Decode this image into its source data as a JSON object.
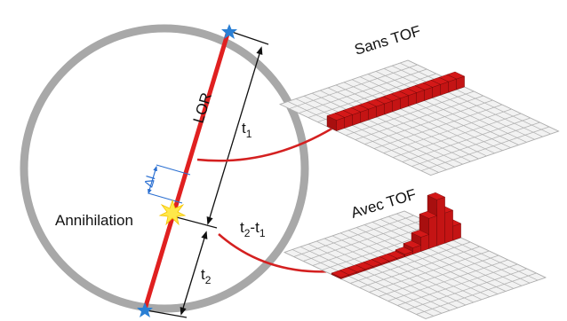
{
  "labels": {
    "lor": "LOR",
    "t1": "t",
    "t1_sub": "1",
    "t2": "t",
    "t2_sub": "2",
    "t2_minus_t1_a": "t",
    "t2_minus_t1_a_sub": "2",
    "t2_minus_t1_dash": "-t",
    "t2_minus_t1_b_sub": "1",
    "delta_l": "Δl",
    "annihilation": "Annihilation",
    "sans_tof": "Sans TOF",
    "avec_tof": "Avec TOF"
  },
  "colors": {
    "ring": "#a8a8a8",
    "lor": "#e02020",
    "arrow": "#d42020",
    "detector": "#2a7fd4",
    "delta": "#2a6fd1",
    "burst": "#ffe84a",
    "grid": "#b0b0b0",
    "bar": "#d41818"
  },
  "icons": {
    "detector_top": "star-burst-icon",
    "detector_bottom": "star-burst-icon",
    "annihilation": "starburst-icon"
  }
}
